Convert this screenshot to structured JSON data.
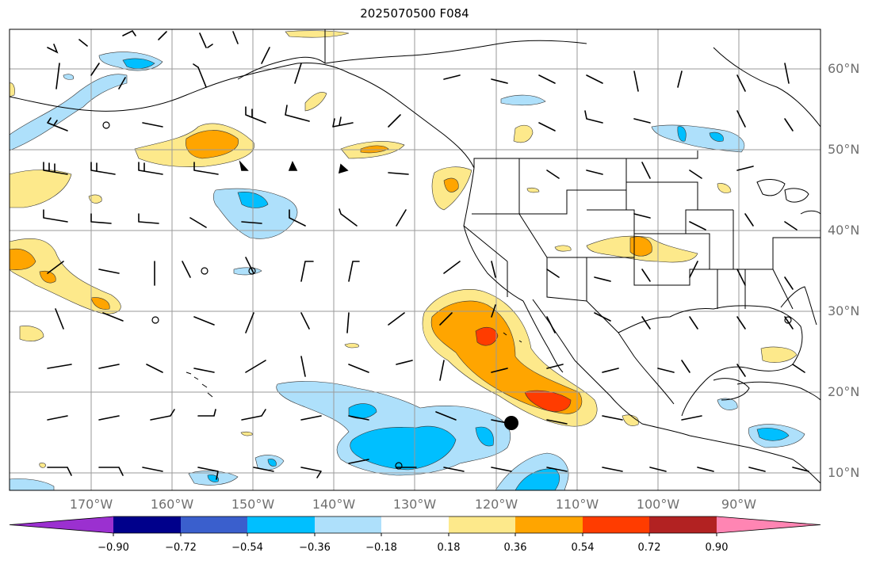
{
  "title": "2025070500 F084",
  "lat_labels": [
    "60°N",
    "50°N",
    "40°N",
    "30°N",
    "20°N",
    "10°N"
  ],
  "lon_labels": [
    "170°W",
    "160°W",
    "150°W",
    "140°W",
    "130°W",
    "120°W",
    "110°W",
    "100°W",
    "90°W"
  ],
  "colorbar": {
    "ticks": [
      "−0.90",
      "−0.72",
      "−0.54",
      "−0.36",
      "−0.18",
      "0.18",
      "0.36",
      "0.54",
      "0.72",
      "0.90"
    ],
    "colors": [
      "#9b30d0",
      "#00008b",
      "#3a5fcd",
      "#00bfff",
      "#aee0fb",
      "#ffffff",
      "#fde98b",
      "#ffa500",
      "#ff3c00",
      "#b22222",
      "#ff85b3"
    ]
  }
}
